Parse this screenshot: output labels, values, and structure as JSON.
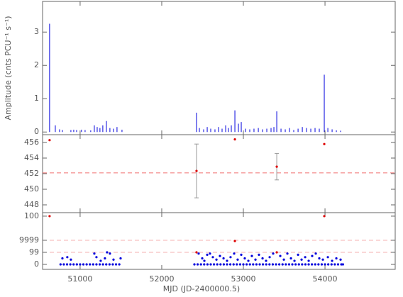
{
  "chart_data": [
    {
      "type": "bar",
      "ylabel": "Amplitude (cnts PCU⁻¹ s⁻¹)",
      "xlim": [
        50540,
        54860
      ],
      "ylim": [
        -0.08,
        3.92
      ],
      "yticks": [
        0,
        1,
        2,
        3
      ],
      "series": [
        {
          "color": "#0000dd",
          "x": [
            50626,
            50696,
            50748,
            50783,
            50887,
            50922,
            50957,
            51017,
            51061,
            51130,
            51174,
            51209,
            51243,
            51278,
            51322,
            51365,
            51409,
            51452,
            51513,
            52426,
            52461,
            52513,
            52557,
            52600,
            52652,
            52696,
            52739,
            52783,
            52817,
            52852,
            52896,
            52939,
            52974,
            53026,
            53078,
            53130,
            53183,
            53235,
            53287,
            53339,
            53374,
            53409,
            53461,
            53513,
            53565,
            53617,
            53670,
            53722,
            53774,
            53826,
            53878,
            53930,
            53991,
            54035,
            54087,
            54139,
            54191
          ],
          "values": [
            3.25,
            0.2,
            0.08,
            0.06,
            0.06,
            0.07,
            0.06,
            0.07,
            0.06,
            0.05,
            0.2,
            0.15,
            0.12,
            0.2,
            0.33,
            0.12,
            0.1,
            0.15,
            0.07,
            0.58,
            0.12,
            0.08,
            0.15,
            0.1,
            0.08,
            0.15,
            0.1,
            0.2,
            0.12,
            0.2,
            0.65,
            0.25,
            0.3,
            0.1,
            0.08,
            0.1,
            0.12,
            0.08,
            0.1,
            0.12,
            0.15,
            0.62,
            0.1,
            0.08,
            0.12,
            0.06,
            0.1,
            0.15,
            0.12,
            0.1,
            0.12,
            0.1,
            1.72,
            0.12,
            0.08,
            0.05,
            0.04
          ]
        }
      ]
    },
    {
      "type": "scatter",
      "xlim": [
        50540,
        54860
      ],
      "ylim": [
        447,
        457
      ],
      "yticks": [
        448,
        450,
        452,
        454,
        456
      ],
      "hlines": [
        452.1
      ],
      "hline_color": "#f07070",
      "series": [
        {
          "color": "#dd0000",
          "error_color": "#999999",
          "x": [
            50626,
            52426,
            52896,
            53409,
            53991
          ],
          "values": [
            456.3,
            452.35,
            456.4,
            452.9,
            455.8
          ],
          "errors": [
            null,
            3.45,
            null,
            1.7,
            null
          ]
        }
      ]
    },
    {
      "type": "scatter",
      "xlabel": "MJD (JD-2400000.5)",
      "xlim": [
        50540,
        54860
      ],
      "xticks": [
        51000,
        52000,
        53000,
        54000
      ],
      "ylim": [
        -0.41,
        4.29
      ],
      "yticks": [
        0,
        {
          "value": 1,
          "label": "99"
        },
        {
          "value": 2,
          "label": "9999"
        },
        {
          "value": 4,
          "label": "100"
        }
      ],
      "hlines": [
        1,
        2
      ],
      "hline_color": "#f4b0b0",
      "series": [
        {
          "color": "#0000dd",
          "x": [
            50760,
            50800,
            50840,
            50880,
            50920,
            50960,
            51000,
            51040,
            51080,
            51120,
            51160,
            51200,
            51240,
            51280,
            51320,
            51360,
            51400,
            51440,
            51480,
            52400,
            52440,
            52480,
            52520,
            52560,
            52600,
            52640,
            52680,
            52720,
            52760,
            52800,
            52840,
            52880,
            52920,
            52960,
            53000,
            53040,
            53080,
            53120,
            53160,
            53200,
            53240,
            53280,
            53320,
            53360,
            53400,
            53440,
            53480,
            53520,
            53560,
            53600,
            53640,
            53680,
            53720,
            53760,
            53800,
            53840,
            53880,
            53920,
            53960,
            54000,
            54040,
            54080,
            54120,
            54160,
            54200,
            54220,
            50783,
            50843,
            50887,
            51174,
            51200,
            51252,
            51304,
            51330,
            51365,
            51409,
            51496,
            52452,
            52496,
            52522,
            52557,
            52591,
            52626,
            52670,
            52713,
            52757,
            52800,
            52843,
            52887,
            52930,
            52974,
            53017,
            53061,
            53104,
            53148,
            53191,
            53235,
            53278,
            53322,
            53365,
            53452,
            53496,
            53539,
            53583,
            53626,
            53670,
            53713,
            53757,
            53800,
            53843,
            53887,
            53930,
            53974,
            54035,
            54087,
            54139,
            54191
          ],
          "values": [
            0,
            0,
            0,
            0,
            0,
            0,
            0,
            0,
            0,
            0,
            0,
            0,
            0,
            0,
            0,
            0,
            0,
            0,
            0,
            0,
            0,
            0,
            0,
            0,
            0,
            0,
            0,
            0,
            0,
            0,
            0,
            0,
            0,
            0,
            0,
            0,
            0,
            0,
            0,
            0,
            0,
            0,
            0,
            0,
            0,
            0,
            0,
            0,
            0,
            0,
            0,
            0,
            0,
            0,
            0,
            0,
            0,
            0,
            0,
            0,
            0,
            0,
            0,
            0,
            0,
            0,
            0.5,
            0.6,
            0.4,
            0.9,
            0.6,
            0.3,
            0.5,
            1.0,
            0.9,
            0.4,
            0.5,
            0.9,
            0.5,
            0.3,
            0.8,
            0.9,
            0.6,
            0.4,
            0.7,
            0.5,
            0.3,
            0.6,
            0.9,
            0.4,
            0.8,
            0.5,
            0.3,
            0.7,
            0.4,
            0.8,
            0.5,
            0.3,
            0.6,
            0.9,
            0.7,
            0.4,
            0.9,
            0.5,
            0.3,
            0.8,
            0.4,
            0.6,
            0.3,
            0.7,
            0.9,
            0.5,
            0.4,
            0.6,
            0.3,
            0.5,
            0.4
          ]
        },
        {
          "color": "#dd0000",
          "x": [
            50626,
            52426,
            52896,
            53409,
            53991
          ],
          "values": [
            4,
            1,
            1.94,
            1,
            4
          ]
        }
      ]
    }
  ]
}
